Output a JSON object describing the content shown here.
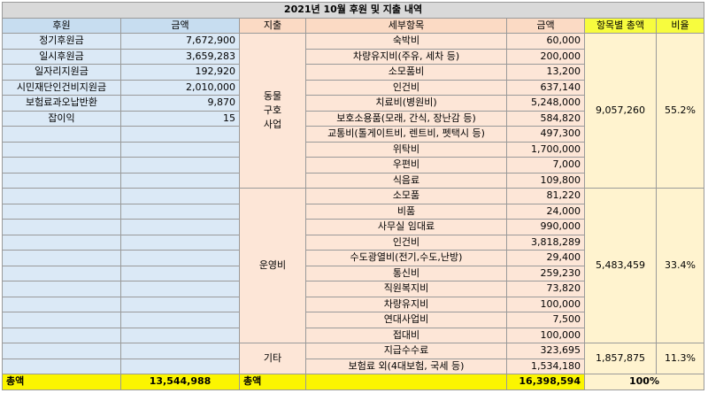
{
  "title": "2021년 10월 후원 및 지출 내역",
  "headers": {
    "donation": "후원",
    "donation_amount": "금액",
    "expense": "지출",
    "detail": "세부항목",
    "detail_amount": "금액",
    "category_total": "항목별 총액",
    "ratio": "비율"
  },
  "donations": [
    {
      "name": "정기후원금",
      "amount": "7,672,900"
    },
    {
      "name": "일시후원금",
      "amount": "3,659,283"
    },
    {
      "name": "일자리지원금",
      "amount": "192,920"
    },
    {
      "name": "시민재단인건비지원금",
      "amount": "2,010,000"
    },
    {
      "name": "보험료과오납반환",
      "amount": "9,870"
    },
    {
      "name": "잡이익",
      "amount": "15"
    }
  ],
  "groups": [
    {
      "name_lines": [
        "동물",
        "구호",
        "사업"
      ],
      "total": "9,057,260",
      "ratio": "55.2%",
      "items": [
        {
          "name": "숙박비",
          "amount": "60,000"
        },
        {
          "name": "차량유지비(주유, 세차 등)",
          "amount": "200,000"
        },
        {
          "name": "소모품비",
          "amount": "13,200"
        },
        {
          "name": "인건비",
          "amount": "637,140"
        },
        {
          "name": "치료비(병원비)",
          "amount": "5,248,000"
        },
        {
          "name": "보호소용품(모래, 간식, 장난감 등)",
          "amount": "584,820"
        },
        {
          "name": "교통비(톨게이트비, 렌트비, 펫택시 등)",
          "amount": "497,300"
        },
        {
          "name": "위탁비",
          "amount": "1,700,000"
        },
        {
          "name": "우편비",
          "amount": "7,000"
        },
        {
          "name": "식음료",
          "amount": "109,800"
        }
      ]
    },
    {
      "name_lines": [
        "운영비"
      ],
      "total": "5,483,459",
      "ratio": "33.4%",
      "items": [
        {
          "name": "소모품",
          "amount": "81,220"
        },
        {
          "name": "비품",
          "amount": "24,000"
        },
        {
          "name": "사무실 임대료",
          "amount": "990,000"
        },
        {
          "name": "인건비",
          "amount": "3,818,289"
        },
        {
          "name": "수도광열비(전기,수도,난방)",
          "amount": "29,400"
        },
        {
          "name": "통신비",
          "amount": "259,230"
        },
        {
          "name": "직원복지비",
          "amount": "73,820"
        },
        {
          "name": "차량유지비",
          "amount": "100,000"
        },
        {
          "name": "연대사업비",
          "amount": "7,500"
        },
        {
          "name": "접대비",
          "amount": "100,000"
        }
      ]
    },
    {
      "name_lines": [
        "기타"
      ],
      "total": "1,857,875",
      "ratio": "11.3%",
      "items": [
        {
          "name": "지급수수료",
          "amount": "323,695"
        },
        {
          "name": "보험료 외(4대보험, 국세 등)",
          "amount": "1,534,180"
        }
      ]
    }
  ],
  "totals": {
    "donation_label": "총액",
    "donation_total": "13,544,988",
    "expense_label": "총액",
    "expense_total": "16,398,594",
    "ratio_total": "100%"
  }
}
